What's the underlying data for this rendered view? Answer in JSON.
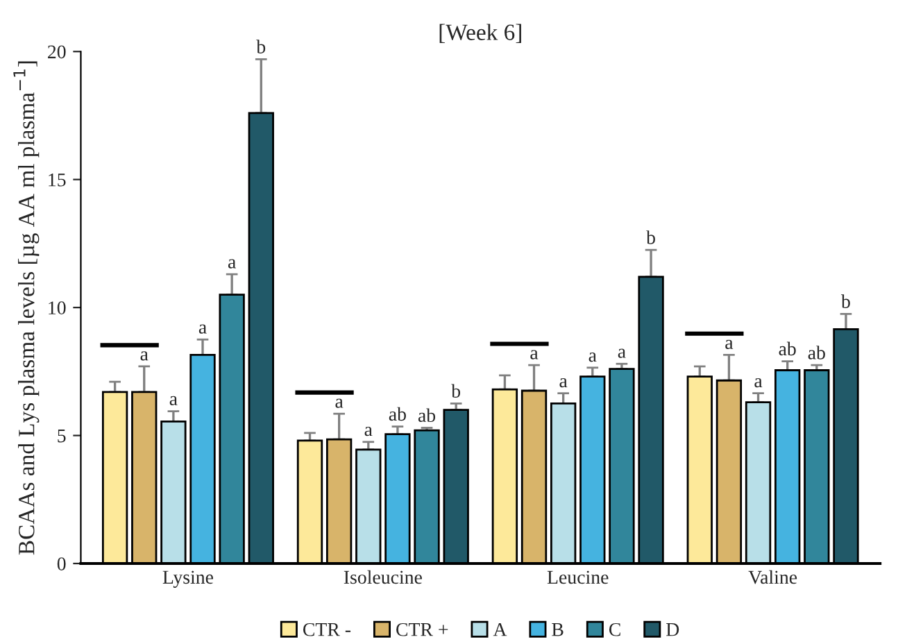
{
  "chart_data": {
    "type": "bar",
    "title": "[Week 6]",
    "ylabel": "BCAAs and Lys plasma levels [µg AA ml plasma$^{−1}$]",
    "categories": [
      "Lysine",
      "Isoleucine",
      "Leucine",
      "Valine"
    ],
    "ylim": [
      0,
      20
    ],
    "yticks": [
      0,
      5,
      10,
      15,
      20
    ],
    "grid": false,
    "legend": "bottom",
    "series": [
      {
        "name": "CTR -",
        "color": "#fde99a",
        "values": [
          6.7,
          4.8,
          6.8,
          7.3
        ],
        "errors": [
          [
            6.7,
            7.1
          ],
          [
            4.8,
            5.1
          ],
          [
            6.8,
            7.35
          ],
          [
            7.3,
            7.7
          ]
        ]
      },
      {
        "name": "CTR +",
        "color": "#d8b46a",
        "values": [
          6.7,
          4.85,
          6.75,
          7.15
        ],
        "errors": [
          [
            6.7,
            7.7
          ],
          [
            4.85,
            5.85
          ],
          [
            6.75,
            7.75
          ],
          [
            7.15,
            8.15
          ]
        ],
        "value_labels": [
          "a",
          "a",
          "a",
          "a"
        ]
      },
      {
        "name": "A",
        "color": "#b8dfe8",
        "values": [
          5.55,
          4.45,
          6.25,
          6.3
        ],
        "errors": [
          [
            5.55,
            5.95
          ],
          [
            4.45,
            4.75
          ],
          [
            6.25,
            6.65
          ],
          [
            6.3,
            6.65
          ]
        ],
        "value_labels": [
          "a",
          "a",
          "a",
          "a"
        ]
      },
      {
        "name": "B",
        "color": "#45b3e0",
        "values": [
          8.15,
          5.05,
          7.3,
          7.55
        ],
        "errors": [
          [
            8.15,
            8.75
          ],
          [
            5.05,
            5.35
          ],
          [
            7.3,
            7.65
          ],
          [
            7.55,
            7.9
          ]
        ],
        "value_labels": [
          "a",
          "ab",
          "a",
          "ab"
        ]
      },
      {
        "name": "C",
        "color": "#31869b",
        "values": [
          10.5,
          5.2,
          7.6,
          7.55
        ],
        "errors": [
          [
            10.5,
            11.3
          ],
          [
            5.2,
            5.3
          ],
          [
            7.6,
            7.8
          ],
          [
            7.55,
            7.75
          ]
        ],
        "value_labels": [
          "a",
          "ab",
          "a",
          "ab"
        ]
      },
      {
        "name": "D",
        "color": "#215968",
        "values": [
          17.6,
          6.0,
          11.2,
          9.15
        ],
        "errors": [
          [
            17.6,
            19.7
          ],
          [
            6.0,
            6.25
          ],
          [
            11.2,
            12.25
          ],
          [
            9.15,
            9.75
          ]
        ],
        "value_labels": [
          "b",
          "b",
          "b",
          "b"
        ]
      }
    ]
  }
}
